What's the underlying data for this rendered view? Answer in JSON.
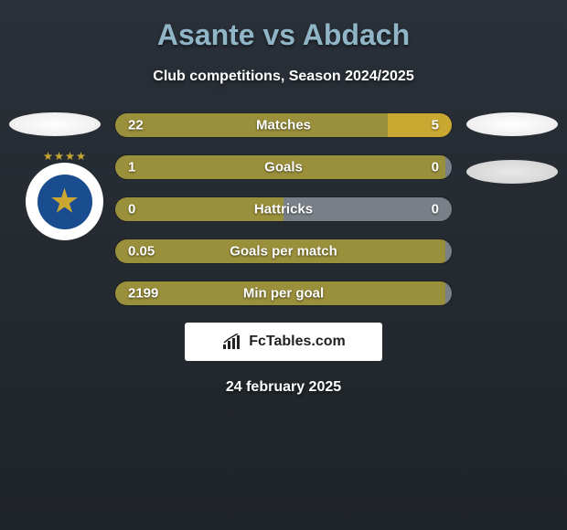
{
  "title": "Asante vs Abdach",
  "subtitle": "Club competitions, Season 2024/2025",
  "date": "24 february 2025",
  "logo_text": "FcTables.com",
  "colors": {
    "title_color": "#8fb5c7",
    "text_color": "#ffffff",
    "bar_fill": "#9a8f3a",
    "bar_right_default": "#7a8088",
    "bar_right_alt": "#c9a730",
    "background_top": "#2a3038",
    "background_bottom": "#1f2428",
    "logo_bg": "#ffffff",
    "logo_text_color": "#222222"
  },
  "bars": [
    {
      "label": "Matches",
      "left_value": "22",
      "right_value": "5",
      "left_width_pct": 81,
      "right_color": "#c9a730"
    },
    {
      "label": "Goals",
      "left_value": "1",
      "right_value": "0",
      "left_width_pct": 98,
      "right_color": "#7a8088"
    },
    {
      "label": "Hattricks",
      "left_value": "0",
      "right_value": "0",
      "left_width_pct": 50,
      "right_color": "#7a8088"
    },
    {
      "label": "Goals per match",
      "left_value": "0.05",
      "right_value": "",
      "left_width_pct": 98,
      "right_color": "#7a8088"
    },
    {
      "label": "Min per goal",
      "left_value": "2199",
      "right_value": "",
      "left_width_pct": 98,
      "right_color": "#7a8088"
    }
  ]
}
